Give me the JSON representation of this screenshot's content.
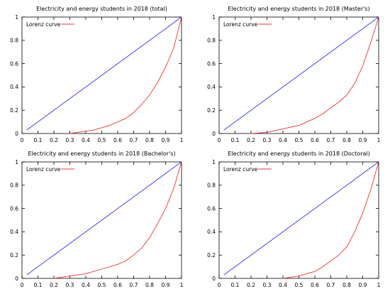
{
  "colors": {
    "lorenz": "#ee3333",
    "equality": "#3333ee",
    "axis": "#000000"
  },
  "chart_data": [
    {
      "type": "line",
      "title": "Electricity and energy students in 2018 (total)",
      "legend": {
        "entries": [
          "Lorenz curve"
        ],
        "placement": "top-left"
      },
      "xlim": [
        0,
        1
      ],
      "ylim": [
        0,
        1
      ],
      "xticks": [
        "0",
        "0.1",
        "0.2",
        "0.3",
        "0.4",
        "0.5",
        "0.6",
        "0.7",
        "0.8",
        "0.9",
        "1"
      ],
      "yticks": [
        "0",
        "0.2",
        "0.4",
        "0.6",
        "0.8",
        "1"
      ],
      "grid": false,
      "series": [
        {
          "name": "Lorenz curve",
          "x": [
            0.3,
            0.35,
            0.4,
            0.45,
            0.5,
            0.55,
            0.6,
            0.65,
            0.7,
            0.75,
            0.8,
            0.85,
            0.9,
            0.95,
            1.0
          ],
          "y": [
            0.0,
            0.01,
            0.02,
            0.03,
            0.05,
            0.07,
            0.1,
            0.13,
            0.18,
            0.25,
            0.33,
            0.44,
            0.57,
            0.73,
            1.0
          ]
        },
        {
          "x": [
            0.03,
            1.0
          ],
          "y": [
            0.03,
            1.0
          ]
        }
      ]
    },
    {
      "type": "line",
      "title": "Electricity and energy students in 2018 (Master's)",
      "legend": {
        "entries": [
          "Lorenz curve"
        ],
        "placement": "top-left"
      },
      "xlim": [
        0,
        1
      ],
      "ylim": [
        0,
        1
      ],
      "xticks": [
        "0",
        "0.1",
        "0.2",
        "0.3",
        "0.4",
        "0.5",
        "0.6",
        "0.7",
        "0.8",
        "0.9",
        "1"
      ],
      "yticks": [
        "0",
        "0.2",
        "0.4",
        "0.6",
        "0.8",
        "1"
      ],
      "grid": false,
      "series": [
        {
          "name": "Lorenz curve",
          "x": [
            0.2,
            0.3,
            0.4,
            0.5,
            0.6,
            0.65,
            0.7,
            0.75,
            0.8,
            0.85,
            0.9,
            0.95,
            1.0
          ],
          "y": [
            0.0,
            0.01,
            0.04,
            0.07,
            0.13,
            0.17,
            0.22,
            0.27,
            0.33,
            0.43,
            0.58,
            0.78,
            1.0
          ]
        },
        {
          "x": [
            0.03,
            1.0
          ],
          "y": [
            0.03,
            1.0
          ]
        }
      ]
    },
    {
      "type": "line",
      "title": "Electricity and energy students in 2018 (Bachelor's)",
      "legend": {
        "entries": [
          "Lorenz curve"
        ],
        "placement": "top-left"
      },
      "xlim": [
        0,
        1
      ],
      "ylim": [
        0,
        1
      ],
      "xticks": [
        "0",
        "0.1",
        "0.2",
        "0.3",
        "0.4",
        "0.5",
        "0.6",
        "0.7",
        "0.8",
        "0.9",
        "1"
      ],
      "yticks": [
        "0",
        "0.2",
        "0.4",
        "0.6",
        "0.8",
        "1"
      ],
      "grid": false,
      "series": [
        {
          "name": "Lorenz curve",
          "x": [
            0.2,
            0.3,
            0.4,
            0.5,
            0.6,
            0.65,
            0.7,
            0.75,
            0.8,
            0.85,
            0.9,
            0.95,
            1.0
          ],
          "y": [
            0.0,
            0.02,
            0.04,
            0.08,
            0.12,
            0.15,
            0.2,
            0.26,
            0.35,
            0.47,
            0.6,
            0.77,
            1.0
          ]
        },
        {
          "x": [
            0.03,
            1.0
          ],
          "y": [
            0.03,
            1.0
          ]
        }
      ]
    },
    {
      "type": "line",
      "title": "Electricity and energy students in 2018 (Doctoral)",
      "legend": {
        "entries": [
          "Lorenz curve"
        ],
        "placement": "top-left"
      },
      "xlim": [
        0,
        1
      ],
      "ylim": [
        0,
        1
      ],
      "xticks": [
        "0",
        "0.1",
        "0.2",
        "0.3",
        "0.4",
        "0.5",
        "0.6",
        "0.7",
        "0.8",
        "0.9",
        "1"
      ],
      "yticks": [
        "0",
        "0.2",
        "0.4",
        "0.6",
        "0.8",
        "1"
      ],
      "grid": false,
      "series": [
        {
          "name": "Lorenz curve",
          "x": [
            0.4,
            0.45,
            0.5,
            0.55,
            0.6,
            0.65,
            0.7,
            0.75,
            0.8,
            0.85,
            0.9,
            0.95,
            1.0
          ],
          "y": [
            0.0,
            0.01,
            0.02,
            0.04,
            0.06,
            0.1,
            0.15,
            0.2,
            0.27,
            0.4,
            0.56,
            0.76,
            1.0
          ]
        },
        {
          "x": [
            0.03,
            1.0
          ],
          "y": [
            0.03,
            1.0
          ]
        }
      ]
    }
  ]
}
